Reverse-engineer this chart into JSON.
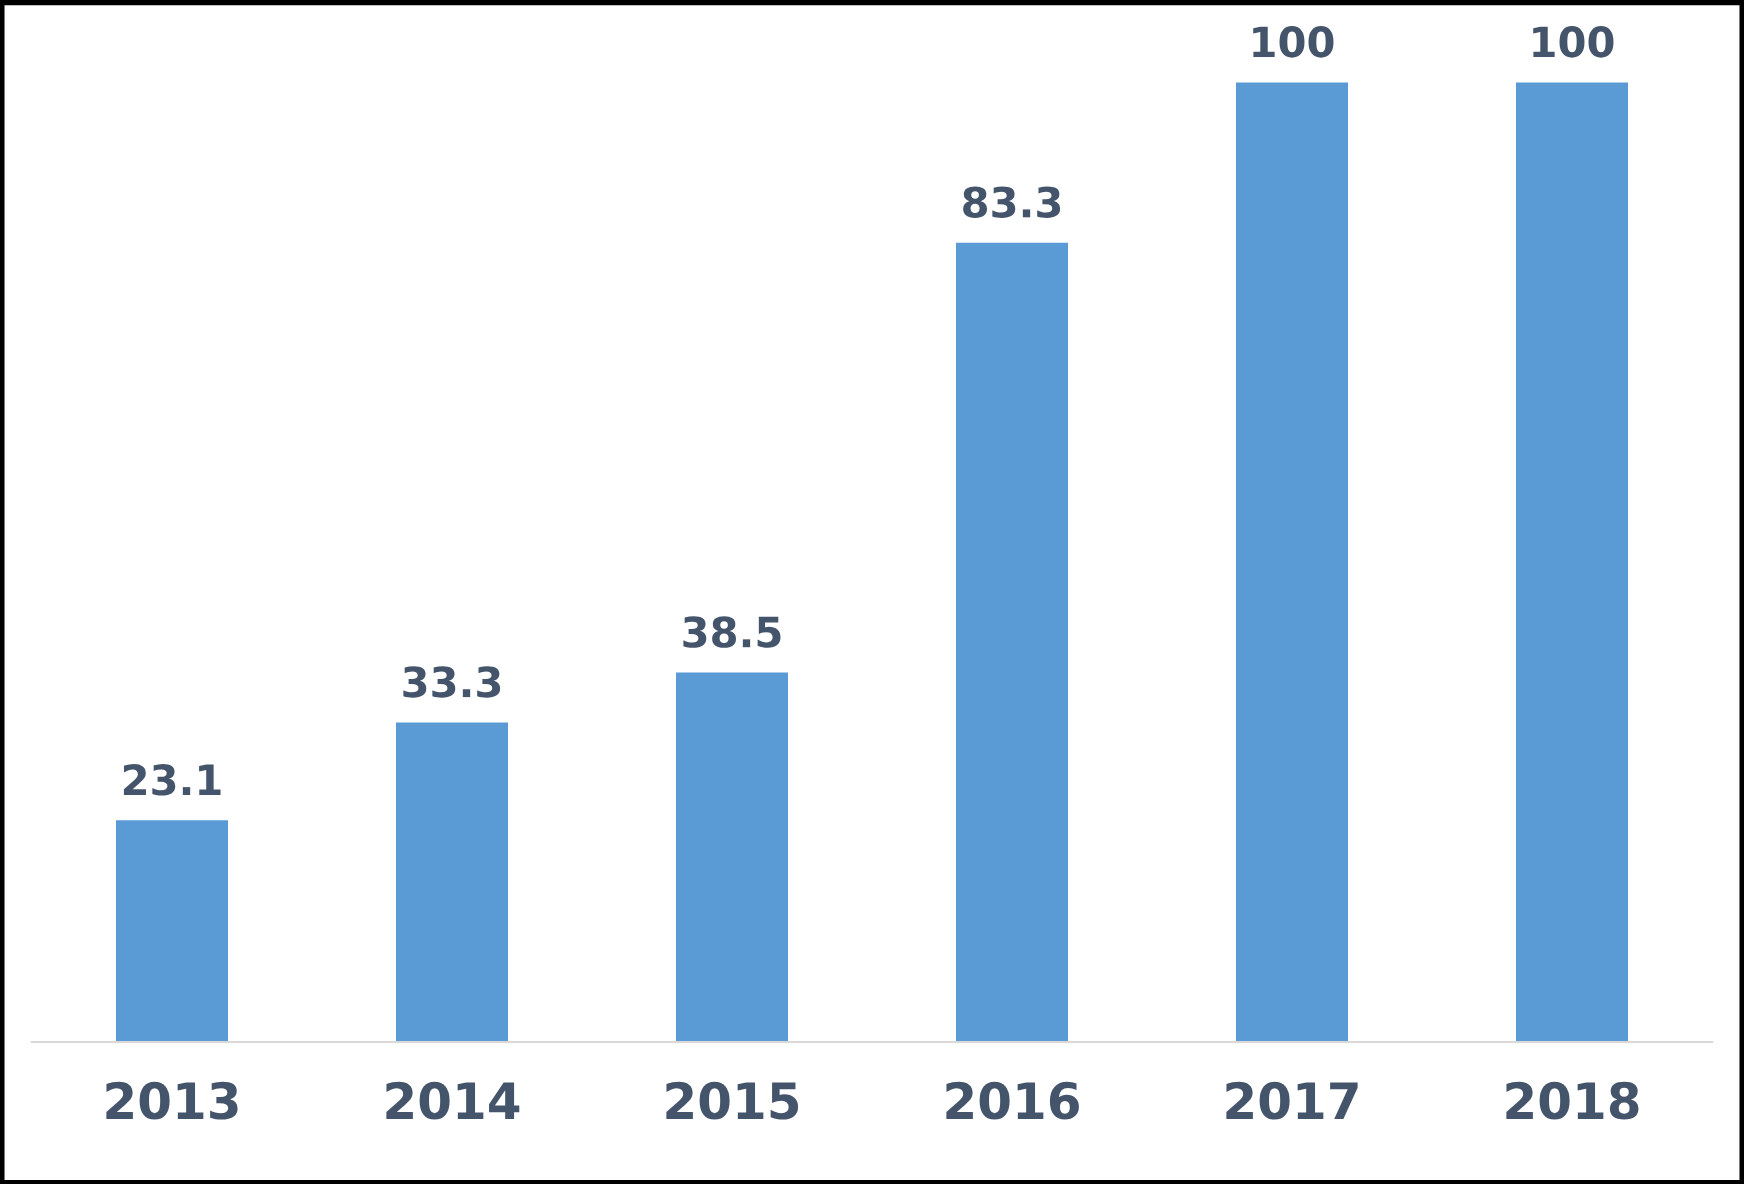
{
  "chart_data": {
    "type": "bar",
    "categories": [
      "2013",
      "2014",
      "2015",
      "2016",
      "2017",
      "2018"
    ],
    "values": [
      23.1,
      33.3,
      38.5,
      83.3,
      100,
      100
    ],
    "color": "#5b9bd5",
    "data_labels": true,
    "grid": false,
    "legend": false
  }
}
